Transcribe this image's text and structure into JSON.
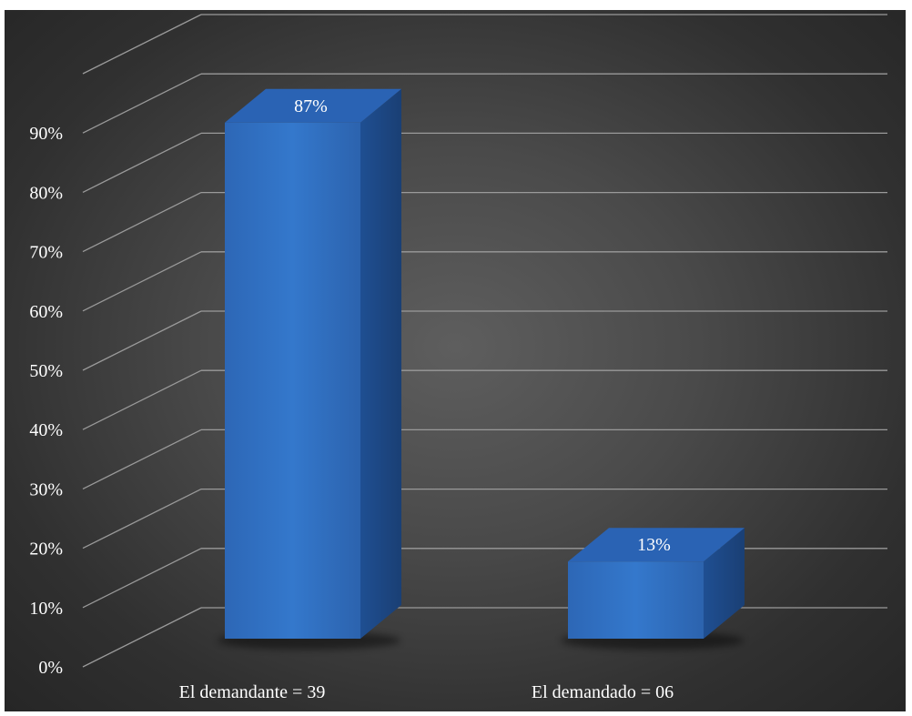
{
  "chart_data": {
    "type": "bar",
    "categories": [
      "El demandante  = 39",
      "El demandado = 06"
    ],
    "values": [
      87,
      13
    ],
    "data_labels": [
      "87%",
      "13%"
    ],
    "ylim": [
      0,
      100
    ],
    "y_ticks": [
      0,
      10,
      20,
      30,
      40,
      50,
      60,
      70,
      80,
      90
    ],
    "y_tick_labels": [
      "0%",
      "10%",
      "20%",
      "30%",
      "40%",
      "50%",
      "60%",
      "70%",
      "80%",
      "90%"
    ],
    "grid": true,
    "style": "3d-column",
    "colors": {
      "bar_front": "#2f6fc2",
      "bar_side": "#1d4a8a",
      "bar_top": "#2a63b4",
      "grid": "#9a9a9a",
      "background": "#4a4a4a",
      "text": "#ffffff"
    }
  }
}
